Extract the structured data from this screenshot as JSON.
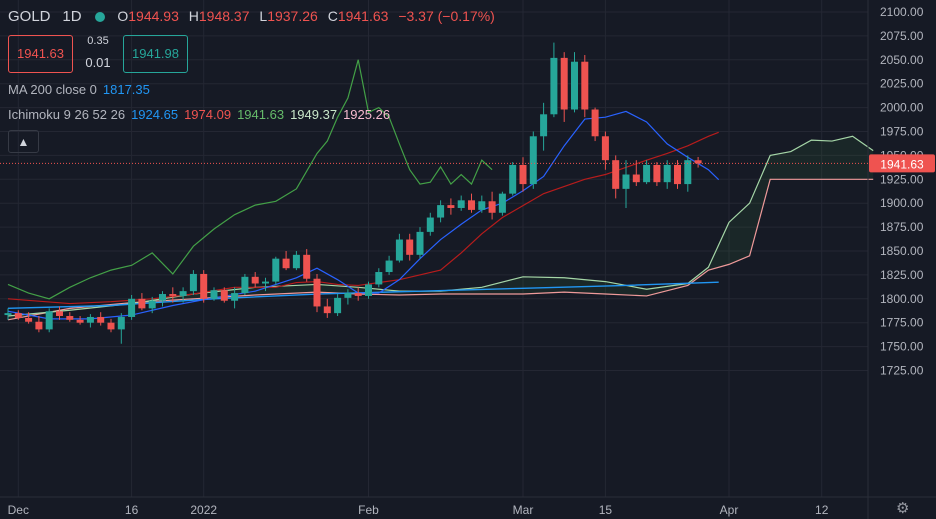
{
  "header": {
    "symbol": "GOLD",
    "interval": "1D",
    "open_label": "O",
    "open": "1944.93",
    "high_label": "H",
    "high": "1948.37",
    "low_label": "L",
    "low": "1937.26",
    "close_label": "C",
    "close": "1941.63",
    "change": "−3.37 (−0.17%)"
  },
  "trade": {
    "sell": "1941.63",
    "buy": "1941.98",
    "spread_top": "0.35",
    "spread_bottom": "0.01"
  },
  "indicators": {
    "ma_label": "MA 200 close 0",
    "ma_value": "1817.35",
    "ichimoku_label": "Ichimoku 9 26 52 26",
    "ich_conversion": "1924.65",
    "ich_base": "1974.09",
    "ich_lagging": "1941.63",
    "ich_span_a": "1949.37",
    "ich_span_b": "1925.26"
  },
  "colors": {
    "background": "#161a25",
    "up": "#26a69a",
    "down": "#ef5350",
    "conversion": "#2962ff",
    "base": "#b71c1c",
    "lagging": "#43a047",
    "span_a": "#a5d6a7",
    "span_b": "#ef9a9a",
    "ma": "#2196f3",
    "grid": "#242733"
  },
  "icons": {
    "collapse": "chevron-up-icon",
    "settings": "gear-icon"
  },
  "chart_data": {
    "type": "candlestick",
    "price_axis": {
      "min": 1725,
      "max": 2100,
      "ticks": [
        "2100.00",
        "2075.00",
        "2050.00",
        "2025.00",
        "2000.00",
        "1975.00",
        "1950.00",
        "1925.00",
        "1900.00",
        "1875.00",
        "1850.00",
        "1825.00",
        "1800.00",
        "1775.00",
        "1750.00",
        "1725.00"
      ]
    },
    "time_axis": {
      "labels": [
        {
          "text": "Dec",
          "slot": 1
        },
        {
          "text": "16",
          "slot": 12
        },
        {
          "text": "2022",
          "slot": 19
        },
        {
          "text": "Feb",
          "slot": 35
        },
        {
          "text": "Mar",
          "slot": 50
        },
        {
          "text": "15",
          "slot": 58
        },
        {
          "text": "Apr",
          "slot": 70
        },
        {
          "text": "12",
          "slot": 79
        }
      ]
    },
    "last_price_label": "1941.63",
    "last_price": 1941.63,
    "candles": [
      [
        1783,
        1790,
        1778,
        1785
      ],
      [
        1785,
        1788,
        1778,
        1780
      ],
      [
        1780,
        1786,
        1774,
        1776
      ],
      [
        1776,
        1782,
        1765,
        1768
      ],
      [
        1768,
        1790,
        1765,
        1787
      ],
      [
        1787,
        1792,
        1778,
        1782
      ],
      [
        1782,
        1786,
        1776,
        1778
      ],
      [
        1778,
        1782,
        1773,
        1775
      ],
      [
        1775,
        1784,
        1770,
        1781
      ],
      [
        1781,
        1786,
        1772,
        1775
      ],
      [
        1775,
        1779,
        1765,
        1768
      ],
      [
        1768,
        1785,
        1753,
        1781
      ],
      [
        1781,
        1804,
        1778,
        1800
      ],
      [
        1800,
        1806,
        1788,
        1790
      ],
      [
        1790,
        1802,
        1785,
        1798
      ],
      [
        1798,
        1808,
        1792,
        1805
      ],
      [
        1805,
        1812,
        1796,
        1803
      ],
      [
        1803,
        1812,
        1796,
        1808
      ],
      [
        1808,
        1830,
        1804,
        1826
      ],
      [
        1826,
        1830,
        1796,
        1800
      ],
      [
        1800,
        1812,
        1798,
        1809
      ],
      [
        1809,
        1812,
        1796,
        1798
      ],
      [
        1798,
        1812,
        1790,
        1806
      ],
      [
        1806,
        1826,
        1804,
        1823
      ],
      [
        1823,
        1828,
        1812,
        1816
      ],
      [
        1816,
        1822,
        1808,
        1818
      ],
      [
        1818,
        1844,
        1815,
        1842
      ],
      [
        1842,
        1850,
        1830,
        1832
      ],
      [
        1832,
        1850,
        1830,
        1846
      ],
      [
        1846,
        1852,
        1818,
        1821
      ],
      [
        1821,
        1826,
        1786,
        1792
      ],
      [
        1792,
        1800,
        1780,
        1785
      ],
      [
        1785,
        1805,
        1782,
        1801
      ],
      [
        1801,
        1810,
        1794,
        1806
      ],
      [
        1806,
        1812,
        1798,
        1803
      ],
      [
        1803,
        1818,
        1800,
        1815
      ],
      [
        1815,
        1832,
        1812,
        1828
      ],
      [
        1828,
        1845,
        1825,
        1840
      ],
      [
        1840,
        1868,
        1838,
        1862
      ],
      [
        1862,
        1868,
        1840,
        1846
      ],
      [
        1846,
        1875,
        1842,
        1870
      ],
      [
        1870,
        1890,
        1866,
        1885
      ],
      [
        1885,
        1903,
        1880,
        1898
      ],
      [
        1898,
        1905,
        1888,
        1895
      ],
      [
        1895,
        1908,
        1892,
        1903
      ],
      [
        1903,
        1910,
        1890,
        1893
      ],
      [
        1893,
        1908,
        1890,
        1902
      ],
      [
        1902,
        1912,
        1883,
        1890
      ],
      [
        1890,
        1912,
        1887,
        1910
      ],
      [
        1910,
        1943,
        1908,
        1940
      ],
      [
        1940,
        1948,
        1912,
        1920
      ],
      [
        1920,
        1975,
        1915,
        1970
      ],
      [
        1970,
        2005,
        1955,
        1993
      ],
      [
        1993,
        2068,
        1990,
        2052
      ],
      [
        2052,
        2058,
        1985,
        1998
      ],
      [
        1998,
        2058,
        1995,
        2048
      ],
      [
        2048,
        2055,
        1990,
        1998
      ],
      [
        1998,
        2000,
        1965,
        1970
      ],
      [
        1970,
        1975,
        1935,
        1945
      ],
      [
        1945,
        1950,
        1905,
        1915
      ],
      [
        1915,
        1945,
        1895,
        1930
      ],
      [
        1930,
        1945,
        1918,
        1922
      ],
      [
        1922,
        1945,
        1920,
        1940
      ],
      [
        1940,
        1943,
        1918,
        1922
      ],
      [
        1922,
        1945,
        1915,
        1940
      ],
      [
        1940,
        1945,
        1915,
        1920
      ],
      [
        1920,
        1950,
        1912,
        1945
      ],
      [
        1944.93,
        1948.37,
        1937.26,
        1941.63
      ]
    ],
    "series": {
      "conversion": [
        [
          0,
          1787
        ],
        [
          4,
          1779
        ],
        [
          8,
          1779
        ],
        [
          12,
          1783
        ],
        [
          16,
          1793
        ],
        [
          20,
          1801
        ],
        [
          24,
          1808
        ],
        [
          28,
          1822
        ],
        [
          30,
          1832
        ],
        [
          32,
          1820
        ],
        [
          34,
          1806
        ],
        [
          36,
          1806
        ],
        [
          38,
          1820
        ],
        [
          40,
          1842
        ],
        [
          42,
          1862
        ],
        [
          44,
          1878
        ],
        [
          46,
          1893
        ],
        [
          48,
          1900
        ],
        [
          50,
          1913
        ],
        [
          52,
          1928
        ],
        [
          54,
          1960
        ],
        [
          56,
          1988
        ],
        [
          58,
          1990
        ],
        [
          60,
          1996
        ],
        [
          62,
          1985
        ],
        [
          64,
          1962
        ],
        [
          66,
          1948
        ],
        [
          68,
          1935
        ],
        [
          69,
          1924.65
        ]
      ],
      "base": [
        [
          0,
          1800
        ],
        [
          6,
          1795
        ],
        [
          10,
          1797
        ],
        [
          14,
          1800
        ],
        [
          18,
          1805
        ],
        [
          22,
          1812
        ],
        [
          26,
          1812
        ],
        [
          28,
          1817
        ],
        [
          30,
          1818
        ],
        [
          32,
          1815
        ],
        [
          34,
          1814
        ],
        [
          38,
          1820
        ],
        [
          42,
          1830
        ],
        [
          44,
          1848
        ],
        [
          46,
          1868
        ],
        [
          48,
          1885
        ],
        [
          52,
          1910
        ],
        [
          56,
          1925
        ],
        [
          58,
          1930
        ],
        [
          62,
          1945
        ],
        [
          64,
          1952
        ],
        [
          66,
          1960
        ],
        [
          68,
          1970
        ],
        [
          69,
          1974.09
        ]
      ],
      "ma200": [
        [
          0,
          1790
        ],
        [
          10,
          1793
        ],
        [
          20,
          1800
        ],
        [
          30,
          1805
        ],
        [
          40,
          1808
        ],
        [
          50,
          1811
        ],
        [
          60,
          1814
        ],
        [
          69,
          1817.35
        ]
      ],
      "lagging": [
        [
          0,
          1815
        ],
        [
          2,
          1806
        ],
        [
          4,
          1800
        ],
        [
          6,
          1812
        ],
        [
          8,
          1822
        ],
        [
          10,
          1830
        ],
        [
          12,
          1835
        ],
        [
          14,
          1848
        ],
        [
          16,
          1826
        ],
        [
          18,
          1855
        ],
        [
          20,
          1873
        ],
        [
          22,
          1888
        ],
        [
          24,
          1898
        ],
        [
          26,
          1902
        ],
        [
          28,
          1915
        ],
        [
          30,
          1952
        ],
        [
          31,
          1965
        ],
        [
          32,
          1990
        ],
        [
          33,
          2010
        ],
        [
          34,
          2050
        ],
        [
          35,
          1995
        ],
        [
          36,
          2000
        ],
        [
          37,
          1990
        ],
        [
          38,
          1962
        ],
        [
          39,
          1935
        ],
        [
          40,
          1920
        ],
        [
          41,
          1922
        ],
        [
          42,
          1938
        ],
        [
          43,
          1920
        ],
        [
          44,
          1930
        ],
        [
          45,
          1920
        ],
        [
          46,
          1945
        ],
        [
          47,
          1935
        ]
      ],
      "span_a": [
        [
          0,
          1782
        ],
        [
          6,
          1788
        ],
        [
          12,
          1795
        ],
        [
          18,
          1805
        ],
        [
          24,
          1812
        ],
        [
          30,
          1815
        ],
        [
          34,
          1812
        ],
        [
          38,
          1808
        ],
        [
          42,
          1808
        ],
        [
          46,
          1812
        ],
        [
          50,
          1823
        ],
        [
          54,
          1822
        ],
        [
          58,
          1818
        ],
        [
          62,
          1810
        ],
        [
          66,
          1816
        ],
        [
          68,
          1833
        ],
        [
          70,
          1880
        ],
        [
          72,
          1900
        ],
        [
          74,
          1950
        ],
        [
          76,
          1954
        ],
        [
          78,
          1966
        ],
        [
          80,
          1965
        ],
        [
          82,
          1970
        ],
        [
          84,
          1955
        ]
      ],
      "span_b": [
        [
          0,
          1778
        ],
        [
          6,
          1790
        ],
        [
          12,
          1796
        ],
        [
          18,
          1800
        ],
        [
          24,
          1804
        ],
        [
          30,
          1807
        ],
        [
          34,
          1805
        ],
        [
          38,
          1804
        ],
        [
          42,
          1805
        ],
        [
          46,
          1805
        ],
        [
          50,
          1805
        ],
        [
          54,
          1807
        ],
        [
          58,
          1805
        ],
        [
          62,
          1803
        ],
        [
          66,
          1814
        ],
        [
          68,
          1830
        ],
        [
          70,
          1836
        ],
        [
          72,
          1845
        ],
        [
          74,
          1925
        ],
        [
          76,
          1925
        ],
        [
          80,
          1925
        ],
        [
          84,
          1925
        ]
      ]
    }
  }
}
